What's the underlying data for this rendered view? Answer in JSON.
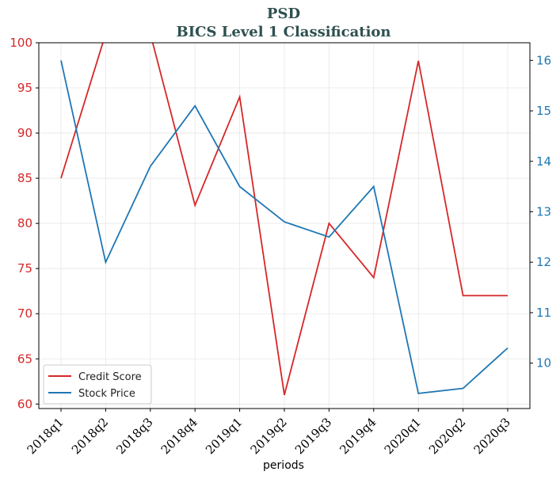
{
  "chart_data": {
    "type": "line",
    "title": "PSD",
    "subtitle": "BICS Level 1 Classification",
    "xlabel": "periods",
    "categories": [
      "2018q1",
      "2018q2",
      "2018q3",
      "2018q4",
      "2019q1",
      "2019q2",
      "2019q3",
      "2019q4",
      "2020q1",
      "2020q2",
      "2020q3"
    ],
    "left_axis": {
      "ylim": [
        59.5,
        100
      ],
      "ticks": [
        60,
        65,
        70,
        75,
        80,
        85,
        90,
        95,
        100
      ],
      "color": "#d62728"
    },
    "right_axis": {
      "ylim": [
        9.1,
        16.35
      ],
      "ticks": [
        10,
        11,
        12,
        13,
        14,
        15,
        16
      ],
      "color": "#1f77b4"
    },
    "series": [
      {
        "name": "Credit Score",
        "axis": "left",
        "color": "#d62728",
        "values": [
          85,
          101,
          101,
          82,
          94,
          61,
          80,
          74,
          98,
          72,
          72
        ]
      },
      {
        "name": "Stock Price",
        "axis": "right",
        "color": "#1f77b4",
        "values": [
          16.0,
          12.0,
          13.9,
          15.1,
          13.5,
          12.8,
          12.5,
          13.5,
          9.4,
          9.5,
          10.3
        ]
      }
    ],
    "grid": true,
    "legend_position": "lower-left",
    "title_color": "#2f4f4f"
  }
}
